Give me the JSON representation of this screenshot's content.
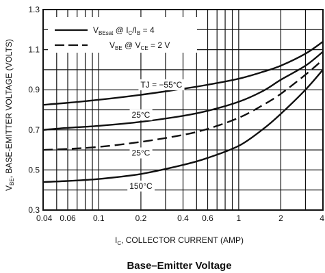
{
  "chart_data": {
    "type": "line",
    "title": "Base–Emitter Voltage",
    "xlabel": "IC, COLLECTOR CURRENT (AMP)",
    "ylabel": "VBE, BASE-EMITTER VOLTAGE (VOLTS)",
    "x_scale": "log",
    "xlim": [
      0.04,
      4
    ],
    "ylim": [
      0.3,
      1.3
    ],
    "x_ticks": [
      0.04,
      0.06,
      0.1,
      0.2,
      0.4,
      0.6,
      1,
      2,
      4
    ],
    "x_tick_labels": [
      "0.04",
      "0.06",
      "0.1",
      "0.2",
      "0.4",
      "0.6",
      "1",
      "2",
      "4"
    ],
    "y_ticks": [
      0.3,
      0.5,
      0.7,
      0.9,
      1.1,
      1.3
    ],
    "y_tick_labels": [
      "0.3",
      "0.5",
      "0.7",
      "0.9",
      "1.1",
      "1.3"
    ],
    "grid": true,
    "legend": [
      {
        "style": "solid",
        "text": "VBEsat @ IC/IB = 4"
      },
      {
        "style": "dashed",
        "text": "VBE @ VCE = 2 V"
      }
    ],
    "series": [
      {
        "name": "TJ = −55°C",
        "style": "solid",
        "x": [
          0.04,
          0.06,
          0.1,
          0.2,
          0.4,
          0.6,
          1,
          1.5,
          2,
          3,
          4
        ],
        "y": [
          0.825,
          0.835,
          0.85,
          0.875,
          0.905,
          0.925,
          0.955,
          0.99,
          1.02,
          1.08,
          1.14
        ]
      },
      {
        "name": "25°C",
        "style": "solid",
        "x": [
          0.04,
          0.06,
          0.1,
          0.2,
          0.4,
          0.6,
          1,
          1.5,
          2,
          3,
          4
        ],
        "y": [
          0.7,
          0.71,
          0.72,
          0.74,
          0.77,
          0.795,
          0.84,
          0.895,
          0.95,
          1.02,
          1.09
        ]
      },
      {
        "name": "25°C",
        "style": "dashed",
        "x": [
          0.04,
          0.06,
          0.1,
          0.2,
          0.4,
          0.6,
          1,
          1.5,
          2,
          3,
          4
        ],
        "y": [
          0.6,
          0.605,
          0.615,
          0.64,
          0.675,
          0.705,
          0.76,
          0.825,
          0.88,
          0.975,
          1.05
        ]
      },
      {
        "name": "150°C",
        "style": "solid",
        "x": [
          0.04,
          0.06,
          0.1,
          0.2,
          0.4,
          0.6,
          1,
          1.5,
          2,
          3,
          4
        ],
        "y": [
          0.44,
          0.445,
          0.455,
          0.48,
          0.525,
          0.56,
          0.62,
          0.705,
          0.78,
          0.9,
          1.0
        ]
      }
    ],
    "curve_labels": [
      {
        "text": "TJ = −55°C",
        "x": 0.28,
        "y": 0.925
      },
      {
        "text": "25°C",
        "x": 0.2,
        "y": 0.775
      },
      {
        "text": "25°C",
        "x": 0.2,
        "y": 0.585
      },
      {
        "text": "150°C",
        "x": 0.2,
        "y": 0.42
      }
    ]
  }
}
